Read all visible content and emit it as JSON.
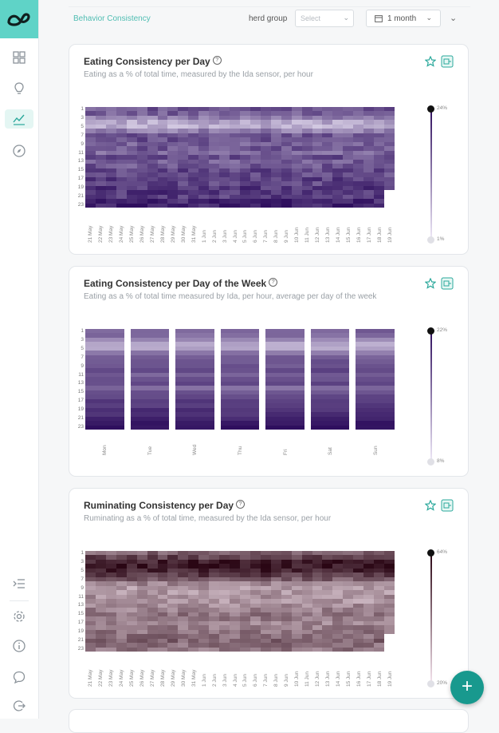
{
  "header": {
    "breadcrumb": "Behavior Consistency",
    "herd_group_label": "herd group",
    "herd_group_placeholder": "Select",
    "period": "1 month"
  },
  "colors": {
    "brand": "#5fd3c7",
    "accent": "#18998e",
    "eating_high": "#2f0f5e",
    "eating_low": "#efe9f8",
    "ruminating_high": "#2a0614",
    "ruminating_low": "#f5e4ee"
  },
  "sidebar": {
    "items": [
      {
        "icon": "dashboard-icon"
      },
      {
        "icon": "lightbulb-icon"
      },
      {
        "icon": "chart-line-icon",
        "active": true
      },
      {
        "icon": "compass-icon"
      }
    ],
    "bottom": [
      {
        "icon": "collapse-menu-icon"
      },
      {
        "icon": "settings-icon"
      },
      {
        "icon": "info-icon"
      },
      {
        "icon": "chat-icon"
      },
      {
        "icon": "logout-icon"
      }
    ]
  },
  "cards": [
    {
      "title": "Eating Consistency per Day",
      "subtitle": "Eating as a % of total time, measured by the Ida sensor, per hour",
      "legend_max": "24%",
      "legend_min": "1%"
    },
    {
      "title": "Eating Consistency per Day of the Week",
      "subtitle": "Eating as a % of total time measured by Ida, per hour, average per day of the week",
      "legend_max": "22%",
      "legend_min": "8%"
    },
    {
      "title": "Ruminating Consistency per Day",
      "subtitle": "Ruminating as a % of total time, measured by the Ida sensor, per hour",
      "legend_max": "64%",
      "legend_min": "20%"
    }
  ],
  "chart_data": [
    {
      "type": "heatmap",
      "title": "Eating Consistency per Day",
      "xlabel": "",
      "ylabel": "",
      "y_ticks": [
        "1",
        "3",
        "5",
        "7",
        "9",
        "11",
        "13",
        "15",
        "17",
        "19",
        "21",
        "23"
      ],
      "x": [
        "21 May",
        "22 May",
        "23 May",
        "24 May",
        "25 May",
        "26 May",
        "27 May",
        "28 May",
        "29 May",
        "30 May",
        "31 May",
        "1 Jun",
        "2 Jun",
        "3 Jun",
        "4 Jun",
        "5 Jun",
        "6 Jun",
        "7 Jun",
        "8 Jun",
        "9 Jun",
        "10 Jun",
        "11 Jun",
        "12 Jun",
        "13 Jun",
        "14 Jun",
        "15 Jun",
        "16 Jun",
        "17 Jun",
        "18 Jun",
        "19 Jun"
      ],
      "x_tick_labels": [
        "21 May",
        "22 May",
        "23 May",
        "24 May",
        "25 May",
        "26 May",
        "27 May",
        "28 May",
        "29 May",
        "30 May",
        "31 May",
        "1 Jun",
        "2 Jun",
        "3 Jun",
        "4 Jun",
        "5 Jun",
        "6 Jun",
        "7 Jun",
        "8 Jun",
        "9 Jun",
        "10 Jun",
        "11 Jun",
        "12 Jun",
        "13 Jun",
        "14 Jun",
        "15 Jun",
        "16 Jun",
        "17 Jun",
        "18 Jun",
        "19 Jun"
      ],
      "hours": 23,
      "scale_min": 1,
      "scale_max": 24,
      "unit": "%",
      "hour_profile": [
        15,
        14,
        10,
        5,
        4,
        10,
        15,
        16,
        14,
        15,
        13,
        16,
        14,
        15,
        17,
        16,
        18,
        17,
        19,
        19,
        18,
        21,
        22
      ]
    },
    {
      "type": "heatmap",
      "title": "Eating Consistency per Day of the Week",
      "xlabel": "",
      "ylabel": "",
      "y_ticks": [
        "1",
        "3",
        "5",
        "7",
        "9",
        "11",
        "13",
        "15",
        "17",
        "19",
        "21",
        "23"
      ],
      "x": [
        "Mon",
        "Tue",
        "Wed",
        "Thu",
        "Fri",
        "Sat",
        "Sun"
      ],
      "x_tick_labels": [
        "Mon",
        "Tue",
        "Wed",
        "Thu",
        "Fri",
        "Sat",
        "Sun"
      ],
      "hours": 23,
      "scale_min": 8,
      "scale_max": 22,
      "unit": "%",
      "hour_profile": [
        15,
        14,
        12,
        9,
        9,
        13,
        15,
        16,
        16,
        17,
        15,
        16,
        17,
        14,
        16,
        17,
        18,
        18,
        19,
        19,
        20,
        21,
        22
      ]
    },
    {
      "type": "heatmap",
      "title": "Ruminating Consistency per Day",
      "xlabel": "",
      "ylabel": "",
      "y_ticks": [
        "1",
        "3",
        "5",
        "7",
        "9",
        "11",
        "13",
        "15",
        "17",
        "19",
        "21",
        "23"
      ],
      "x": [
        "21 May",
        "22 May",
        "23 May",
        "24 May",
        "25 May",
        "26 May",
        "27 May",
        "28 May",
        "29 May",
        "30 May",
        "31 May",
        "1 Jun",
        "2 Jun",
        "3 Jun",
        "4 Jun",
        "5 Jun",
        "6 Jun",
        "7 Jun",
        "8 Jun",
        "9 Jun",
        "10 Jun",
        "11 Jun",
        "12 Jun",
        "13 Jun",
        "14 Jun",
        "15 Jun",
        "16 Jun",
        "17 Jun",
        "18 Jun",
        "19 Jun"
      ],
      "x_tick_labels": [
        "21 May",
        "22 May",
        "23 May",
        "24 May",
        "25 May",
        "26 May",
        "27 May",
        "28 May",
        "29 May",
        "30 May",
        "31 May",
        "1 Jun",
        "2 Jun",
        "3 Jun",
        "4 Jun",
        "5 Jun",
        "6 Jun",
        "7 Jun",
        "8 Jun",
        "9 Jun",
        "10 Jun",
        "11 Jun",
        "12 Jun",
        "13 Jun",
        "14 Jun",
        "15 Jun",
        "16 Jun",
        "17 Jun",
        "18 Jun",
        "19 Jun"
      ],
      "hours": 23,
      "scale_min": 20,
      "scale_max": 64,
      "unit": "%",
      "hour_profile": [
        42,
        50,
        58,
        60,
        57,
        52,
        44,
        35,
        30,
        30,
        32,
        30,
        33,
        35,
        38,
        36,
        34,
        36,
        38,
        40,
        42,
        40,
        38
      ]
    }
  ]
}
